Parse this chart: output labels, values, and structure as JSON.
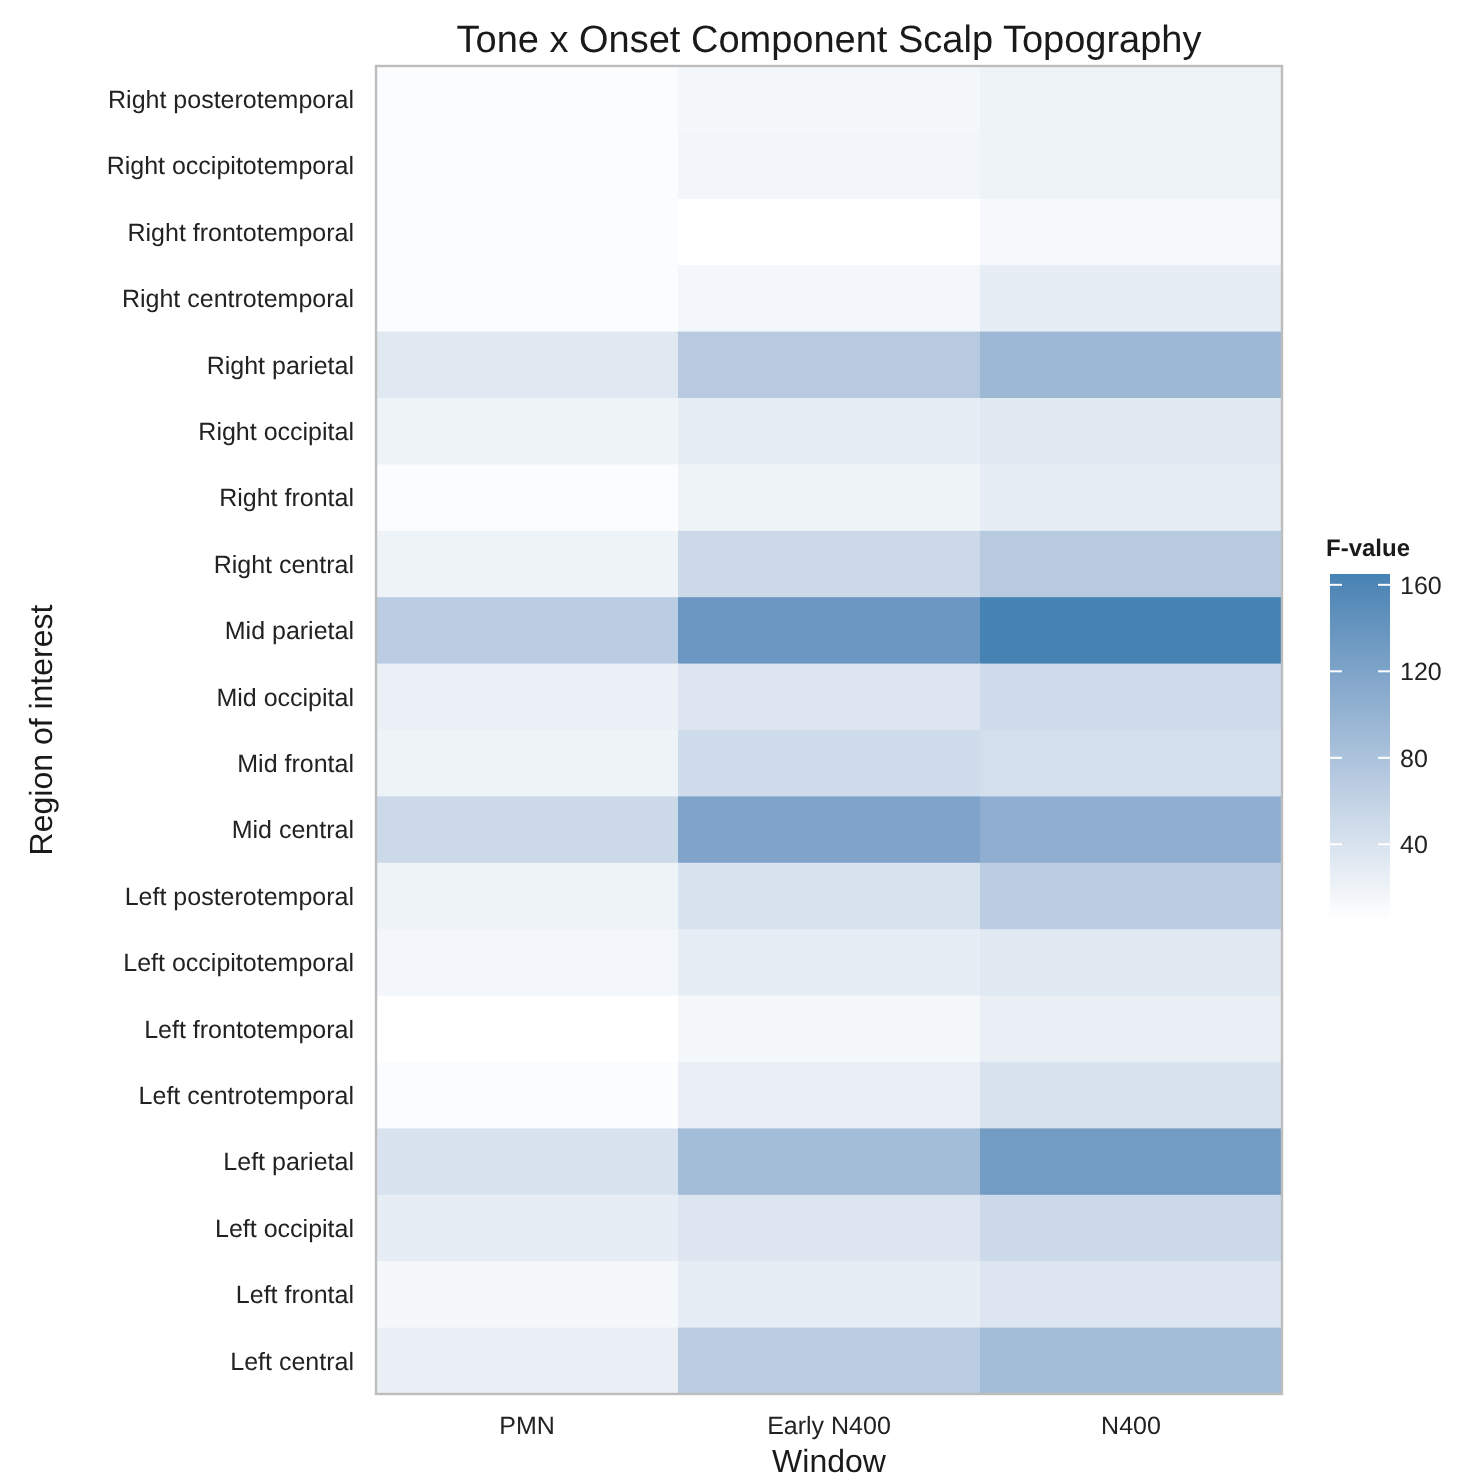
{
  "chart_data": {
    "type": "heatmap",
    "title": "Tone x Onset Component Scalp Topography",
    "xlabel": "Window",
    "ylabel": "Region of interest",
    "clabel": "F-value",
    "categories": [
      "PMN",
      "Early N400",
      "N400"
    ],
    "y_categories": [
      "Right posterotemporal",
      "Right occipitotemporal",
      "Right frontotemporal",
      "Right centrotemporal",
      "Right parietal",
      "Right occipital",
      "Right frontal",
      "Right central",
      "Mid parietal",
      "Mid occipital",
      "Mid frontal",
      "Mid central",
      "Left posterotemporal",
      "Left occipitotemporal",
      "Left frontotemporal",
      "Left centrotemporal",
      "Left parietal",
      "Left occipital",
      "Left frontal",
      "Left central"
    ],
    "cells": [
      [
        9,
        14,
        20
      ],
      [
        9,
        17,
        20
      ],
      [
        9,
        5,
        13
      ],
      [
        9,
        16,
        27
      ],
      [
        33,
        70,
        94
      ],
      [
        20,
        27,
        33
      ],
      [
        9,
        20,
        27
      ],
      [
        20,
        52,
        70
      ],
      [
        67,
        136,
        165
      ],
      [
        23,
        36,
        48
      ],
      [
        20,
        48,
        44
      ],
      [
        52,
        119,
        106
      ],
      [
        20,
        39,
        67
      ],
      [
        16,
        27,
        33
      ],
      [
        5,
        14,
        24
      ],
      [
        9,
        24,
        39
      ],
      [
        39,
        88,
        130
      ],
      [
        27,
        36,
        52
      ],
      [
        14,
        27,
        36
      ],
      [
        24,
        67,
        88
      ]
    ],
    "clim": [
      5,
      165
    ],
    "cticks": [
      40,
      80,
      120,
      160
    ]
  }
}
